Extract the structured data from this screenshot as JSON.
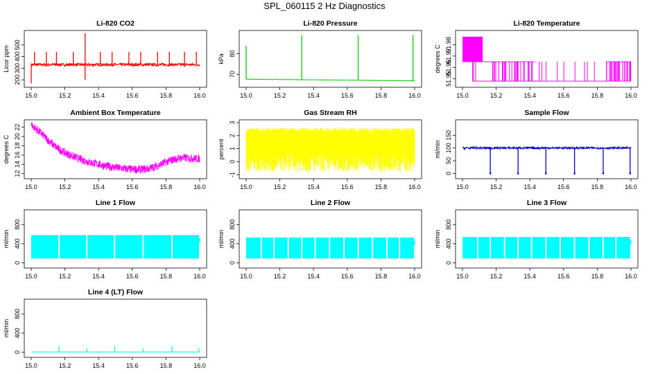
{
  "figure": {
    "title": "SPL_060115  2 Hz Diagnostics"
  },
  "chart_data": [
    {
      "id": "co2",
      "type": "line",
      "title": "Li-820 CO2",
      "ylabel": "Licor ppm",
      "color": "#ff0000",
      "xlim": [
        15.0,
        16.0
      ],
      "ylim": [
        160,
        600
      ],
      "xticks": [
        "15.0",
        "15.2",
        "15.4",
        "15.6",
        "15.8",
        "16.0"
      ],
      "yticks": [
        "200",
        "300",
        "400",
        "500"
      ],
      "series": [
        {
          "name": "CO2",
          "baseline": 330,
          "noise": 12,
          "spikes": [
            {
              "x": 15.02,
              "y": 440
            },
            {
              "x": 15.09,
              "y": 440
            },
            {
              "x": 15.15,
              "y": 440
            },
            {
              "x": 15.25,
              "y": 440
            },
            {
              "x": 15.32,
              "y": 600
            },
            {
              "x": 15.32,
              "y": 200
            },
            {
              "x": 15.41,
              "y": 440
            },
            {
              "x": 15.48,
              "y": 440
            },
            {
              "x": 15.58,
              "y": 440
            },
            {
              "x": 15.65,
              "y": 440
            },
            {
              "x": 15.75,
              "y": 440
            },
            {
              "x": 15.82,
              "y": 440
            },
            {
              "x": 15.91,
              "y": 440
            },
            {
              "x": 15.98,
              "y": 440
            },
            {
              "x": 15.0,
              "y": 170
            }
          ]
        }
      ]
    },
    {
      "id": "press",
      "type": "line",
      "title": "Li-820 Pressure",
      "ylabel": "kPa",
      "color": "#00cc00",
      "xlim": [
        15.0,
        16.0
      ],
      "ylim": [
        65,
        90
      ],
      "xticks": [
        "15.0",
        "15.2",
        "15.4",
        "15.6",
        "15.8",
        "16.0"
      ],
      "yticks": [
        "70",
        "80"
      ],
      "series": [
        {
          "name": "Pressure",
          "start": 67.6,
          "end": 66.8,
          "noise": 0.15,
          "spikes": [
            {
              "x": 15.0,
              "y": 84
            },
            {
              "x": 15.33,
              "y": 89
            },
            {
              "x": 15.665,
              "y": 89
            },
            {
              "x": 15.99,
              "y": 89
            }
          ]
        }
      ]
    },
    {
      "id": "ltemp",
      "type": "line",
      "title": "Li-820 Temperature",
      "ylabel": "degrees C",
      "color": "#ff00ff",
      "xlim": [
        15.0,
        16.0
      ],
      "ylim": [
        51.945,
        51.99
      ],
      "xticks": [
        "15.0",
        "15.2",
        "15.4",
        "15.6",
        "15.8",
        "16.0"
      ],
      "yticks": [
        "51.95",
        "51.96",
        "51.97",
        "51.98"
      ],
      "series": [
        {
          "name": "Temperature",
          "levels": [
            51.987,
            51.965,
            51.948
          ]
        }
      ]
    },
    {
      "id": "btemp",
      "type": "line",
      "title": "Ambient Box Temperature",
      "ylabel": "degrees C",
      "color": "#ff00ff",
      "xlim": [
        15.0,
        16.0
      ],
      "ylim": [
        11.5,
        23
      ],
      "xticks": [
        "15.0",
        "15.2",
        "15.4",
        "15.6",
        "15.8",
        "16.0"
      ],
      "yticks": [
        "12",
        "14",
        "16",
        "18",
        "20",
        "22"
      ],
      "series": [
        {
          "name": "Box Temp",
          "points": [
            [
              15.0,
              22.5
            ],
            [
              15.05,
              21
            ],
            [
              15.1,
              19.2
            ],
            [
              15.15,
              17.6
            ],
            [
              15.2,
              16.5
            ],
            [
              15.25,
              15.7
            ],
            [
              15.3,
              15
            ],
            [
              15.35,
              14.4
            ],
            [
              15.4,
              14
            ],
            [
              15.45,
              13.6
            ],
            [
              15.5,
              13.3
            ],
            [
              15.55,
              13.1
            ],
            [
              15.6,
              12.9
            ],
            [
              15.65,
              12.9
            ],
            [
              15.7,
              13.1
            ],
            [
              15.75,
              13.7
            ],
            [
              15.8,
              14.5
            ],
            [
              15.85,
              15.1
            ],
            [
              15.9,
              15.4
            ],
            [
              15.95,
              15.3
            ],
            [
              16.0,
              15.2
            ]
          ],
          "noise": 0.9
        }
      ]
    },
    {
      "id": "rh",
      "type": "line",
      "title": "Gas Stream RH",
      "ylabel": "percent",
      "color": "#ffff00",
      "xlim": [
        15.0,
        16.0
      ],
      "ylim": [
        -1.1,
        3.0
      ],
      "xticks": [
        "15.0",
        "15.2",
        "15.4",
        "15.6",
        "15.8",
        "16.0"
      ],
      "yticks": [
        "-1",
        "0",
        "1",
        "2",
        "3"
      ],
      "series": [
        {
          "name": "RH",
          "low": -0.8,
          "high": 2.6,
          "core": [
            0.8,
            2.2
          ]
        }
      ]
    },
    {
      "id": "sflow",
      "type": "line",
      "title": "Sample Flow",
      "ylabel": "ml/min",
      "color": "#0000cc",
      "xlim": [
        15.0,
        16.0
      ],
      "ylim": [
        -10,
        200
      ],
      "xticks": [
        "15.0",
        "15.2",
        "15.4",
        "15.6",
        "15.8",
        "16.0"
      ],
      "yticks": [
        "0",
        "50",
        "100",
        "150"
      ],
      "series": [
        {
          "name": "Flow",
          "baseline": 100,
          "noise": 4,
          "dips": [
            15.165,
            15.33,
            15.495,
            15.665,
            15.835,
            15.995
          ]
        }
      ]
    },
    {
      "id": "l1",
      "type": "area",
      "title": "Line 1 Flow",
      "ylabel": "ml/min",
      "color": "#00ffff",
      "xlim": [
        15.0,
        16.0
      ],
      "ylim": [
        -50,
        1050
      ],
      "xticks": [
        "15.0",
        "15.2",
        "15.4",
        "15.6",
        "15.8",
        "16.0"
      ],
      "yticks": [
        "0",
        "400",
        "800"
      ],
      "series": [
        {
          "name": "Line 1",
          "low": 90,
          "high": 580,
          "gaps": [
            15.165,
            15.33,
            15.495,
            15.665,
            15.835
          ]
        }
      ]
    },
    {
      "id": "l2",
      "type": "area",
      "title": "Line 2 Flow",
      "ylabel": "ml/min",
      "color": "#00ffff",
      "xlim": [
        15.0,
        16.0
      ],
      "ylim": [
        -50,
        1050
      ],
      "xticks": [
        "15.0",
        "15.2",
        "15.4",
        "15.6",
        "15.8",
        "16.0"
      ],
      "yticks": [
        "0",
        "400",
        "800"
      ],
      "series": [
        {
          "name": "Line 2",
          "low": 90,
          "high": 530,
          "gaps": [
            15.09,
            15.165,
            15.25,
            15.33,
            15.41,
            15.495,
            15.58,
            15.665,
            15.75,
            15.835,
            15.91
          ]
        }
      ]
    },
    {
      "id": "l3",
      "type": "area",
      "title": "Line 3 Flow",
      "ylabel": "ml/min",
      "color": "#00ffff",
      "xlim": [
        15.0,
        16.0
      ],
      "ylim": [
        -50,
        1050
      ],
      "xticks": [
        "15.0",
        "15.2",
        "15.4",
        "15.6",
        "15.8",
        "16.0"
      ],
      "yticks": [
        "0",
        "400",
        "800"
      ],
      "series": [
        {
          "name": "Line 3",
          "low": 90,
          "high": 540,
          "gaps": [
            15.09,
            15.165,
            15.25,
            15.33,
            15.41,
            15.495,
            15.58,
            15.665,
            15.75,
            15.835,
            15.91
          ]
        }
      ]
    },
    {
      "id": "l4",
      "type": "line",
      "title": "Line 4 (LT) Flow",
      "ylabel": "ml/min",
      "color": "#00ffff",
      "xlim": [
        15.0,
        16.0
      ],
      "ylim": [
        -50,
        1050
      ],
      "xticks": [
        "15.0",
        "15.2",
        "15.4",
        "15.6",
        "15.8",
        "16.0"
      ],
      "yticks": [
        "0",
        "400",
        "800"
      ],
      "series": [
        {
          "name": "Line 4",
          "baseline": 5,
          "spikes": [
            {
              "x": 15.165,
              "y": 130
            },
            {
              "x": 15.33,
              "y": 80
            },
            {
              "x": 15.495,
              "y": 130
            },
            {
              "x": 15.665,
              "y": 80
            },
            {
              "x": 15.835,
              "y": 130
            },
            {
              "x": 15.995,
              "y": 80
            }
          ]
        }
      ]
    }
  ]
}
